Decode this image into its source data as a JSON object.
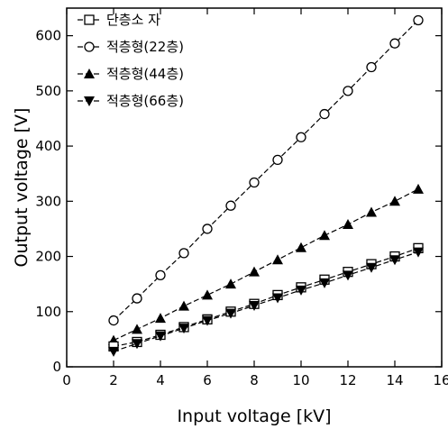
{
  "chart_data": {
    "type": "line",
    "title": "",
    "xlabel": "Input voltage [kV]",
    "ylabel": "Output voltage [V]",
    "xlim": [
      0,
      16
    ],
    "ylim": [
      0,
      650
    ],
    "xticks": [
      0,
      2,
      4,
      6,
      8,
      10,
      12,
      14,
      16
    ],
    "yticks": [
      0,
      100,
      200,
      300,
      400,
      500,
      600
    ],
    "grid": false,
    "legend_position": "top-left",
    "x": [
      2,
      3,
      4,
      5,
      6,
      7,
      8,
      9,
      10,
      11,
      12,
      13,
      14,
      15
    ],
    "series": [
      {
        "name": "단층소 자",
        "marker": "square-open",
        "color": "#000000",
        "values": [
          37,
          45,
          58,
          72,
          86,
          100,
          114,
          130,
          144,
          158,
          172,
          186,
          200,
          215
        ]
      },
      {
        "name": "적층형(22층)",
        "marker": "circle-open",
        "color": "#000000",
        "values": [
          84,
          124,
          166,
          206,
          250,
          292,
          334,
          375,
          416,
          458,
          500,
          543,
          586,
          628
        ]
      },
      {
        "name": "적층형(44층)",
        "marker": "triangle-up-filled",
        "color": "#000000",
        "values": [
          48,
          68,
          88,
          110,
          130,
          150,
          172,
          194,
          216,
          238,
          258,
          280,
          300,
          322
        ]
      },
      {
        "name": "적층형(66층)",
        "marker": "triangle-down-filled",
        "color": "#000000",
        "values": [
          28,
          42,
          56,
          70,
          84,
          97,
          111,
          125,
          139,
          152,
          166,
          180,
          194,
          208
        ]
      }
    ]
  }
}
